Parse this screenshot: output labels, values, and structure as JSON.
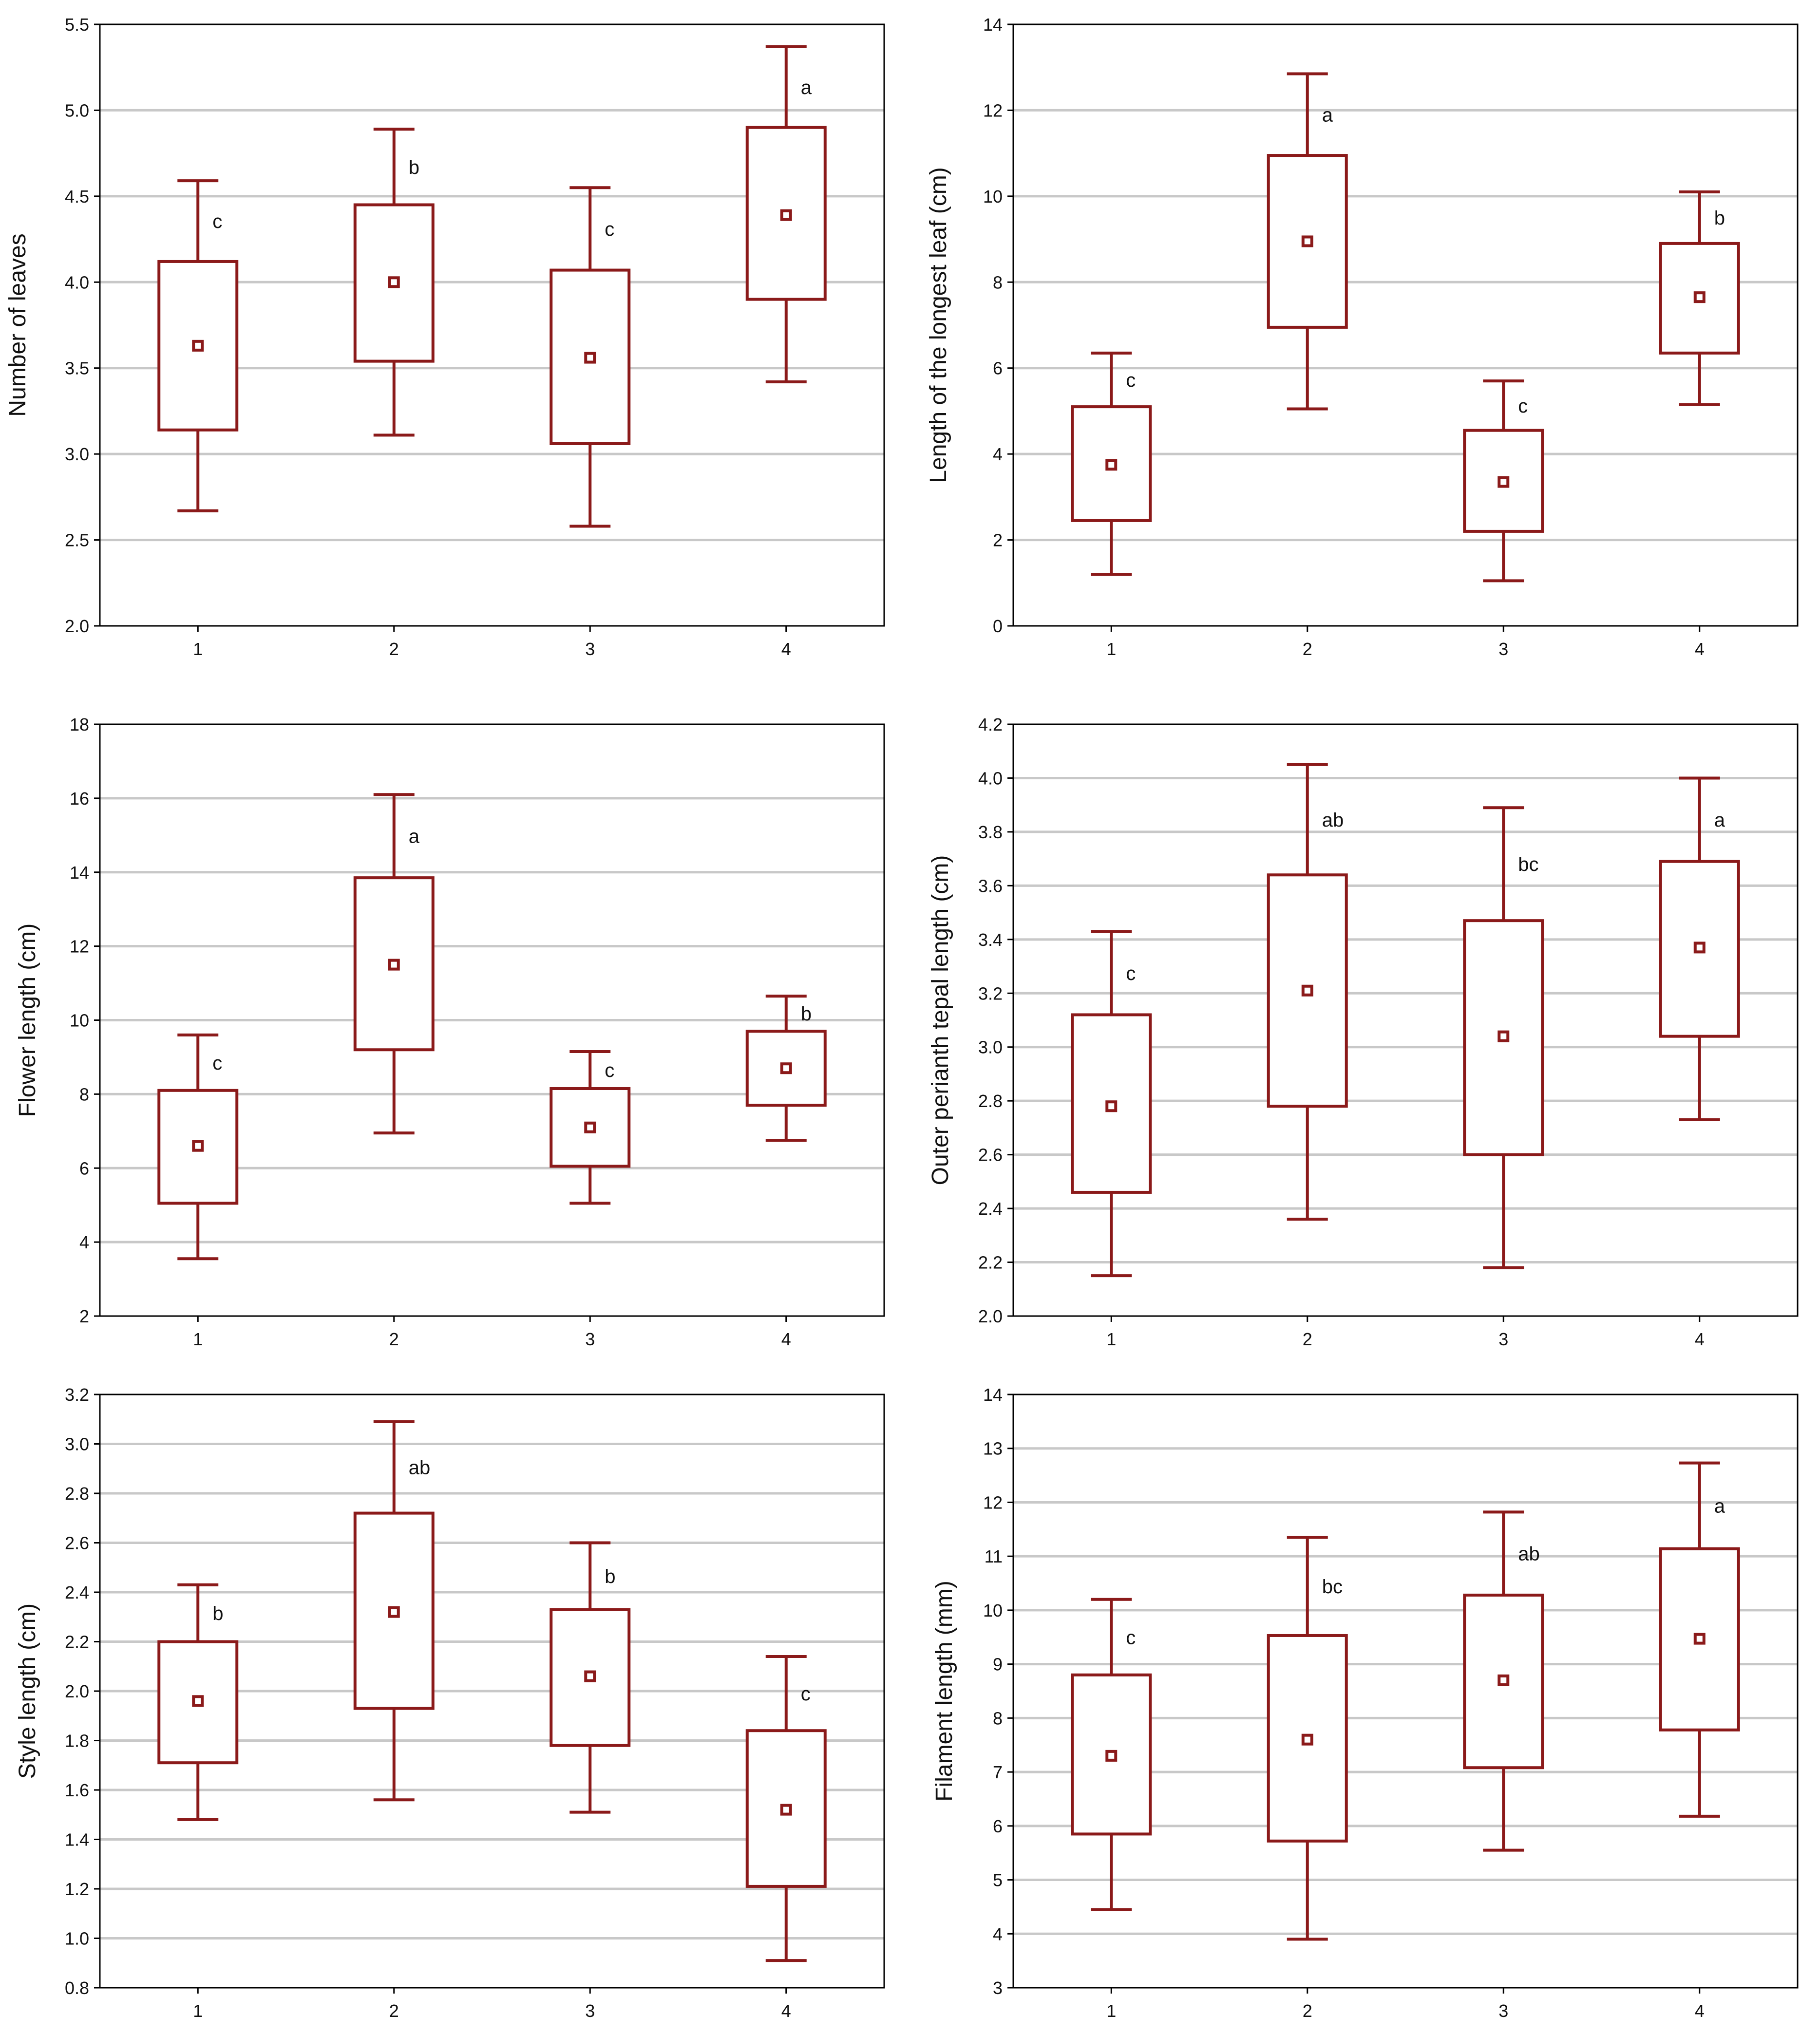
{
  "colors": {
    "series": "#8b1a1a",
    "grid": "#c8c8c8",
    "frame": "#000000"
  },
  "chart_data": [
    {
      "type": "box",
      "title": "",
      "xlabel": "",
      "ylabel": "Number of leaves",
      "categories": [
        "1",
        "2",
        "3",
        "4"
      ],
      "ylim": [
        2.0,
        5.5
      ],
      "yticks": [
        "2.0",
        "2.5",
        "3.0",
        "3.5",
        "4.0",
        "4.5",
        "5.0",
        "5.5"
      ],
      "grid": true,
      "series": [
        {
          "category": "1",
          "mean": 3.63,
          "box_low": 3.14,
          "box_high": 4.12,
          "whisker_low": 2.67,
          "whisker_high": 4.59,
          "letter": "c"
        },
        {
          "category": "2",
          "mean": 4.0,
          "box_low": 3.54,
          "box_high": 4.45,
          "whisker_low": 3.11,
          "whisker_high": 4.89,
          "letter": "b"
        },
        {
          "category": "3",
          "mean": 3.56,
          "box_low": 3.06,
          "box_high": 4.07,
          "whisker_low": 2.58,
          "whisker_high": 4.55,
          "letter": "c"
        },
        {
          "category": "4",
          "mean": 4.39,
          "box_low": 3.9,
          "box_high": 4.9,
          "whisker_low": 3.42,
          "whisker_high": 5.37,
          "letter": "a"
        }
      ]
    },
    {
      "type": "box",
      "title": "",
      "xlabel": "",
      "ylabel": "Length of the longest leaf (cm)",
      "categories": [
        "1",
        "2",
        "3",
        "4"
      ],
      "ylim": [
        0,
        14
      ],
      "yticks": [
        "0",
        "2",
        "4",
        "6",
        "8",
        "10",
        "12",
        "14"
      ],
      "grid": true,
      "series": [
        {
          "category": "1",
          "mean": 3.75,
          "box_low": 2.45,
          "box_high": 5.1,
          "whisker_low": 1.2,
          "whisker_high": 6.35,
          "letter": "c"
        },
        {
          "category": "2",
          "mean": 8.95,
          "box_low": 6.95,
          "box_high": 10.95,
          "whisker_low": 5.05,
          "whisker_high": 12.85,
          "letter": "a"
        },
        {
          "category": "3",
          "mean": 3.35,
          "box_low": 2.2,
          "box_high": 4.55,
          "whisker_low": 1.05,
          "whisker_high": 5.7,
          "letter": "c"
        },
        {
          "category": "4",
          "mean": 7.65,
          "box_low": 6.35,
          "box_high": 8.9,
          "whisker_low": 5.15,
          "whisker_high": 10.1,
          "letter": "b"
        }
      ]
    },
    {
      "type": "box",
      "title": "",
      "xlabel": "",
      "ylabel": "Flower length (cm)",
      "categories": [
        "1",
        "2",
        "3",
        "4"
      ],
      "ylim": [
        2,
        18
      ],
      "yticks": [
        "2",
        "4",
        "6",
        "8",
        "10",
        "12",
        "14",
        "16",
        "18"
      ],
      "grid": true,
      "series": [
        {
          "category": "1",
          "mean": 6.6,
          "box_low": 5.05,
          "box_high": 8.1,
          "whisker_low": 3.55,
          "whisker_high": 9.6,
          "letter": "c"
        },
        {
          "category": "2",
          "mean": 11.5,
          "box_low": 9.2,
          "box_high": 13.85,
          "whisker_low": 6.95,
          "whisker_high": 16.1,
          "letter": "a"
        },
        {
          "category": "3",
          "mean": 7.1,
          "box_low": 6.05,
          "box_high": 8.15,
          "whisker_low": 5.05,
          "whisker_high": 9.15,
          "letter": "c"
        },
        {
          "category": "4",
          "mean": 8.7,
          "box_low": 7.7,
          "box_high": 9.7,
          "whisker_low": 6.75,
          "whisker_high": 10.65,
          "letter": "b"
        }
      ]
    },
    {
      "type": "box",
      "title": "",
      "xlabel": "",
      "ylabel": "Outer perianth tepal length (cm)",
      "categories": [
        "1",
        "2",
        "3",
        "4"
      ],
      "ylim": [
        2.0,
        4.2
      ],
      "yticks": [
        "2.0",
        "2.2",
        "2.4",
        "2.6",
        "2.8",
        "3.0",
        "3.2",
        "3.4",
        "3.6",
        "3.8",
        "4.0",
        "4.2"
      ],
      "grid": true,
      "series": [
        {
          "category": "1",
          "mean": 2.78,
          "box_low": 2.46,
          "box_high": 3.12,
          "whisker_low": 2.15,
          "whisker_high": 3.43,
          "letter": "c"
        },
        {
          "category": "2",
          "mean": 3.21,
          "box_low": 2.78,
          "box_high": 3.64,
          "whisker_low": 2.36,
          "whisker_high": 4.05,
          "letter": "ab"
        },
        {
          "category": "3",
          "mean": 3.04,
          "box_low": 2.6,
          "box_high": 3.47,
          "whisker_low": 2.18,
          "whisker_high": 3.89,
          "letter": "bc"
        },
        {
          "category": "4",
          "mean": 3.37,
          "box_low": 3.04,
          "box_high": 3.69,
          "whisker_low": 2.73,
          "whisker_high": 4.0,
          "letter": "a"
        }
      ]
    },
    {
      "type": "box",
      "title": "",
      "xlabel": "",
      "ylabel": "Style length (cm)",
      "categories": [
        "1",
        "2",
        "3",
        "4"
      ],
      "ylim": [
        0.8,
        3.2
      ],
      "yticks": [
        "0.8",
        "1.0",
        "1.2",
        "1.4",
        "1.6",
        "1.8",
        "2.0",
        "2.2",
        "2.4",
        "2.6",
        "2.8",
        "3.0",
        "3.2"
      ],
      "grid": true,
      "series": [
        {
          "category": "1",
          "mean": 1.96,
          "box_low": 1.71,
          "box_high": 2.2,
          "whisker_low": 1.48,
          "whisker_high": 2.43,
          "letter": "b"
        },
        {
          "category": "2",
          "mean": 2.32,
          "box_low": 1.93,
          "box_high": 2.72,
          "whisker_low": 1.56,
          "whisker_high": 3.09,
          "letter": "ab"
        },
        {
          "category": "3",
          "mean": 2.06,
          "box_low": 1.78,
          "box_high": 2.33,
          "whisker_low": 1.51,
          "whisker_high": 2.6,
          "letter": "b"
        },
        {
          "category": "4",
          "mean": 1.52,
          "box_low": 1.21,
          "box_high": 1.84,
          "whisker_low": 0.91,
          "whisker_high": 2.14,
          "letter": "c"
        }
      ]
    },
    {
      "type": "box",
      "title": "",
      "xlabel": "",
      "ylabel": "Filament length (mm)",
      "categories": [
        "1",
        "2",
        "3",
        "4"
      ],
      "ylim": [
        3,
        14
      ],
      "yticks": [
        "3",
        "4",
        "5",
        "6",
        "7",
        "8",
        "9",
        "10",
        "11",
        "12",
        "13",
        "14"
      ],
      "grid": true,
      "series": [
        {
          "category": "1",
          "mean": 7.3,
          "box_low": 5.85,
          "box_high": 8.8,
          "whisker_low": 4.45,
          "whisker_high": 10.2,
          "letter": "c"
        },
        {
          "category": "2",
          "mean": 7.6,
          "box_low": 5.72,
          "box_high": 9.53,
          "whisker_low": 3.9,
          "whisker_high": 11.35,
          "letter": "bc"
        },
        {
          "category": "3",
          "mean": 8.7,
          "box_low": 7.08,
          "box_high": 10.28,
          "whisker_low": 5.55,
          "whisker_high": 11.82,
          "letter": "ab"
        },
        {
          "category": "4",
          "mean": 9.47,
          "box_low": 7.78,
          "box_high": 11.14,
          "whisker_low": 6.18,
          "whisker_high": 12.73,
          "letter": "a"
        }
      ]
    }
  ]
}
